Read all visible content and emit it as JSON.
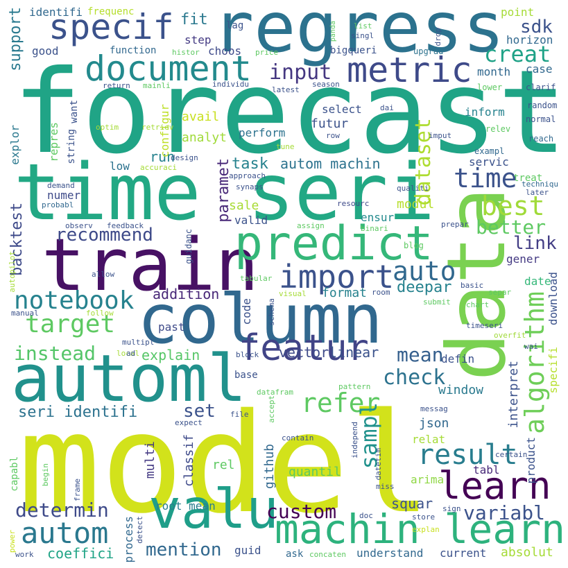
{
  "words": [
    {
      "text": "forecast",
      "color": "#20a486"
    },
    {
      "text": "model",
      "color": "#d2e21b"
    },
    {
      "text": "time seri",
      "color": "#22a884"
    },
    {
      "text": "data",
      "color": "#7ad151"
    },
    {
      "text": "column",
      "color": "#31688e"
    },
    {
      "text": "regress",
      "color": "#2c728e"
    },
    {
      "text": "train",
      "color": "#471164"
    },
    {
      "text": "automl",
      "color": "#21918c"
    },
    {
      "text": "valu",
      "color": "#1f9e89"
    },
    {
      "text": "predict",
      "color": "#35b779"
    },
    {
      "text": "machin learn",
      "color": "#2db27d"
    },
    {
      "text": "specif",
      "color": "#3b528b"
    },
    {
      "text": "document",
      "color": "#238a8d"
    },
    {
      "text": "metric",
      "color": "#3e4a89"
    },
    {
      "text": "featur",
      "color": "#414487"
    },
    {
      "text": "learn",
      "color": "#440154"
    },
    {
      "text": "import",
      "color": "#3b528b"
    },
    {
      "text": "target",
      "color": "#5ec962"
    },
    {
      "text": "notebook",
      "color": "#26828e"
    },
    {
      "text": "autom",
      "color": "#2a788e"
    },
    {
      "text": "algorithm",
      "color": "#6ece58"
    },
    {
      "text": "refer",
      "color": "#5ec962"
    },
    {
      "text": "result",
      "color": "#287d8e"
    },
    {
      "text": "time",
      "color": "#3b528b"
    },
    {
      "text": "best",
      "color": "#a0da39"
    },
    {
      "text": "dataset",
      "color": "#addc30"
    },
    {
      "text": "sampl",
      "color": "#21918c"
    },
    {
      "text": "auto",
      "color": "#31688e"
    },
    {
      "text": "input",
      "color": "#453781"
    },
    {
      "text": "creat",
      "color": "#1fa287"
    },
    {
      "text": "recommend",
      "color": "#3e4a89"
    },
    {
      "text": "better",
      "color": "#5ec962"
    },
    {
      "text": "check",
      "color": "#2c728e"
    },
    {
      "text": "mean",
      "color": "#355f8d"
    },
    {
      "text": "custom",
      "color": "#440154"
    },
    {
      "text": "variabl",
      "color": "#3b528b"
    },
    {
      "text": "determin",
      "color": "#3e4a89"
    },
    {
      "text": "mention",
      "color": "#31688e"
    },
    {
      "text": "instead",
      "color": "#54c568"
    },
    {
      "text": "seri identifi",
      "color": "#2c728e"
    },
    {
      "text": "autom machin",
      "color": "#2c728e"
    },
    {
      "text": "task",
      "color": "#26828e"
    },
    {
      "text": "sdk",
      "color": "#3b528b"
    },
    {
      "text": "link",
      "color": "#433e85"
    },
    {
      "text": "support",
      "color": "#29798e"
    },
    {
      "text": "backtest",
      "color": "#3e4a89"
    },
    {
      "text": "paramet",
      "color": "#482878"
    },
    {
      "text": "set",
      "color": "#3b528b"
    },
    {
      "text": "run",
      "color": "#26828e"
    },
    {
      "text": "fit",
      "color": "#2a788e"
    },
    {
      "text": "addition",
      "color": "#482878"
    },
    {
      "text": "explain",
      "color": "#56c667"
    },
    {
      "text": "vector",
      "color": "#3e4a89"
    },
    {
      "text": "linear",
      "color": "#3b528b"
    },
    {
      "text": "deepar",
      "color": "#26828e"
    },
    {
      "text": "modul",
      "color": "#b5de2b"
    },
    {
      "text": "sale",
      "color": "#a8db34"
    },
    {
      "text": "window",
      "color": "#29798e"
    },
    {
      "text": "interpret",
      "color": "#3b528b"
    },
    {
      "text": "json",
      "color": "#31688e"
    },
    {
      "text": "quantil",
      "color": "#5ec962"
    },
    {
      "text": "github",
      "color": "#31688e"
    },
    {
      "text": "squar",
      "color": "#3b528b"
    },
    {
      "text": "coeffici",
      "color": "#20a486"
    },
    {
      "text": "absolut",
      "color": "#a5db36"
    },
    {
      "text": "understand",
      "color": "#31688e"
    },
    {
      "text": "current",
      "color": "#3b528b"
    },
    {
      "text": "guid",
      "color": "#3b528b"
    },
    {
      "text": "ask",
      "color": "#31688e"
    },
    {
      "text": "process",
      "color": "#31688e"
    },
    {
      "text": "root mean",
      "color": "#287d8e"
    },
    {
      "text": "multi",
      "color": "#443a83"
    },
    {
      "text": "classif",
      "color": "#3e4a89"
    },
    {
      "text": "rel",
      "color": "#5ec962"
    },
    {
      "text": "product",
      "color": "#3b528b"
    },
    {
      "text": "specifi",
      "color": "#b5de2b"
    },
    {
      "text": "download",
      "color": "#3b528b"
    },
    {
      "text": "arima",
      "color": "#8fd744"
    },
    {
      "text": "tabl",
      "color": "#482878"
    },
    {
      "text": "relat",
      "color": "#a5db36"
    },
    {
      "text": "defin",
      "color": "#3b528b"
    },
    {
      "text": "past",
      "color": "#3e4a89"
    },
    {
      "text": "code",
      "color": "#3b528b"
    },
    {
      "text": "format",
      "color": "#26828e"
    },
    {
      "text": "date",
      "color": "#35b779"
    },
    {
      "text": "gener",
      "color": "#443a83"
    },
    {
      "text": "ensur",
      "color": "#238a8d"
    },
    {
      "text": "valid",
      "color": "#3b528b"
    },
    {
      "text": "servic",
      "color": "#3b528b"
    },
    {
      "text": "treat",
      "color": "#5ec962"
    },
    {
      "text": "inform",
      "color": "#26828e"
    },
    {
      "text": "futur",
      "color": "#3b528b"
    },
    {
      "text": "select",
      "color": "#3b528b"
    },
    {
      "text": "perform",
      "color": "#2c728e"
    },
    {
      "text": "analyt",
      "color": "#a0da39"
    },
    {
      "text": "avail",
      "color": "#c8e020"
    },
    {
      "text": "configur",
      "color": "#bddf26"
    },
    {
      "text": "numer",
      "color": "#3e4a89"
    },
    {
      "text": "low",
      "color": "#2c728e"
    },
    {
      "text": "repres",
      "color": "#5ec962"
    },
    {
      "text": "explor",
      "color": "#2a788e"
    },
    {
      "text": "string",
      "color": "#3b528b"
    },
    {
      "text": "want",
      "color": "#3b528b"
    },
    {
      "text": "good",
      "color": "#3b528b"
    },
    {
      "text": "function",
      "color": "#31688e"
    },
    {
      "text": "choos",
      "color": "#3e4a89"
    },
    {
      "text": "step",
      "color": "#443a83"
    },
    {
      "text": "lag",
      "color": "#3b528b"
    },
    {
      "text": "identifi",
      "color": "#31688e"
    },
    {
      "text": "frequenc",
      "color": "#b5de2b"
    },
    {
      "text": "bigqueri",
      "color": "#3b528b"
    },
    {
      "text": "month",
      "color": "#31688e"
    },
    {
      "text": "case",
      "color": "#31688e"
    },
    {
      "text": "horizon",
      "color": "#31688e"
    },
    {
      "text": "point",
      "color": "#a5db36"
    },
    {
      "text": "upgrad",
      "color": "#2c728e"
    },
    {
      "text": "lower",
      "color": "#5ec962"
    },
    {
      "text": "clarif",
      "color": "#3b528b"
    },
    {
      "text": "random",
      "color": "#3b528b"
    },
    {
      "text": "normal",
      "color": "#3b528b"
    },
    {
      "text": "reach",
      "color": "#31688e"
    },
    {
      "text": "relev",
      "color": "#5ec962"
    },
    {
      "text": "exampl",
      "color": "#31688e"
    },
    {
      "text": "later",
      "color": "#3b528b"
    },
    {
      "text": "techniqu",
      "color": "#31688e"
    },
    {
      "text": "qualiti",
      "color": "#3b528b"
    },
    {
      "text": "resourc",
      "color": "#3e4a89"
    },
    {
      "text": "prepar",
      "color": "#3b528b"
    },
    {
      "text": "blog",
      "color": "#5ec962"
    },
    {
      "text": "binari",
      "color": "#5ec962"
    },
    {
      "text": "basic",
      "color": "#3b528b"
    },
    {
      "text": "separ",
      "color": "#5ec962"
    },
    {
      "text": "chart",
      "color": "#5ec962"
    },
    {
      "text": "submit",
      "color": "#5ec962"
    },
    {
      "text": "timeseri",
      "color": "#3b528b"
    },
    {
      "text": "overfit",
      "color": "#a0da39"
    },
    {
      "text": "wai",
      "color": "#3b528b"
    },
    {
      "text": "dai",
      "color": "#3b528b"
    },
    {
      "text": "imput",
      "color": "#3b528b"
    },
    {
      "text": "row",
      "color": "#3b528b"
    },
    {
      "text": "tune",
      "color": "#a5db36"
    },
    {
      "text": "season",
      "color": "#3b528b"
    },
    {
      "text": "latest",
      "color": "#3b528b"
    },
    {
      "text": "individu",
      "color": "#3b528b"
    },
    {
      "text": "mainli",
      "color": "#5ec962"
    },
    {
      "text": "return",
      "color": "#3b528b"
    },
    {
      "text": "price",
      "color": "#5ec962"
    },
    {
      "text": "histor",
      "color": "#5ec962"
    },
    {
      "text": "singl",
      "color": "#3b528b"
    },
    {
      "text": "list",
      "color": "#5ec962"
    },
    {
      "text": "panda",
      "color": "#5ec962"
    },
    {
      "text": "drop",
      "color": "#3b528b"
    },
    {
      "text": "optim",
      "color": "#a5db36"
    },
    {
      "text": "retriev",
      "color": "#a5db36"
    },
    {
      "text": "design",
      "color": "#3b528b"
    },
    {
      "text": "accuraci",
      "color": "#a5db36"
    },
    {
      "text": "approach",
      "color": "#3b528b"
    },
    {
      "text": "synaps",
      "color": "#3b528b"
    },
    {
      "text": "demand",
      "color": "#3b528b"
    },
    {
      "text": "probabl",
      "color": "#31688e"
    },
    {
      "text": "observ",
      "color": "#3b528b"
    },
    {
      "text": "feedback",
      "color": "#3b528b"
    },
    {
      "text": "autopilot",
      "color": "#a5db36"
    },
    {
      "text": "guidanc",
      "color": "#3b528b"
    },
    {
      "text": "assign",
      "color": "#5ec962"
    },
    {
      "text": "allow",
      "color": "#3b528b"
    },
    {
      "text": "tabular",
      "color": "#5ec962"
    },
    {
      "text": "visual",
      "color": "#a5db36"
    },
    {
      "text": "room",
      "color": "#3b528b"
    },
    {
      "text": "schema",
      "color": "#3b528b"
    },
    {
      "text": "manual",
      "color": "#3b528b"
    },
    {
      "text": "follow",
      "color": "#a5db36"
    },
    {
      "text": "multipl",
      "color": "#3b528b"
    },
    {
      "text": "local",
      "color": "#a5db36"
    },
    {
      "text": "ad",
      "color": "#3b528b"
    },
    {
      "text": "block",
      "color": "#3b528b"
    },
    {
      "text": "base",
      "color": "#3b528b"
    },
    {
      "text": "pattern",
      "color": "#5ec962"
    },
    {
      "text": "datafram",
      "color": "#5ec962"
    },
    {
      "text": "accept",
      "color": "#5ec962"
    },
    {
      "text": "file",
      "color": "#3b528b"
    },
    {
      "text": "expect",
      "color": "#3b528b"
    },
    {
      "text": "messag",
      "color": "#3b528b"
    },
    {
      "text": "contain",
      "color": "#3b528b"
    },
    {
      "text": "independ",
      "color": "#3b528b"
    },
    {
      "text": "miss",
      "color": "#3b528b"
    },
    {
      "text": "datetim",
      "color": "#3b528b"
    },
    {
      "text": "certain",
      "color": "#3b528b"
    },
    {
      "text": "capabl",
      "color": "#5ec962"
    },
    {
      "text": "begin",
      "color": "#5ec962"
    },
    {
      "text": "frame",
      "color": "#3b528b"
    },
    {
      "text": "detect",
      "color": "#3b528b"
    },
    {
      "text": "doc",
      "color": "#3b528b"
    },
    {
      "text": "store",
      "color": "#3b528b"
    },
    {
      "text": "sign",
      "color": "#3b528b"
    },
    {
      "text": "explan",
      "color": "#c8e020"
    },
    {
      "text": "power",
      "color": "#c8e020"
    },
    {
      "text": "work",
      "color": "#3b528b"
    },
    {
      "text": "concaten",
      "color": "#5ec962"
    }
  ]
}
